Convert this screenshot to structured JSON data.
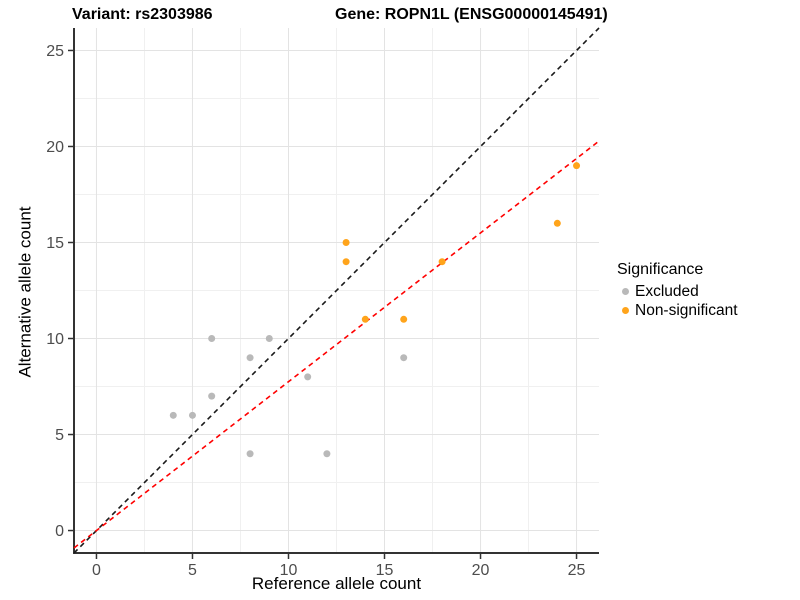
{
  "title": {
    "variant": "Variant: rs2303986",
    "gene": "Gene: ROPN1L (ENSG00000145491)"
  },
  "chart_data": {
    "type": "scatter",
    "xlabel": "Reference allele count",
    "ylabel": "Alternative allele count",
    "xlim": [
      -1.17,
      26.17
    ],
    "ylim": [
      -1.17,
      26.17
    ],
    "major_breaks": [
      0,
      5,
      10,
      15,
      20,
      25
    ],
    "minor_breaks": [
      2.5,
      7.5,
      12.5,
      17.5,
      22.5
    ],
    "grid": true,
    "series": [
      {
        "name": "Excluded",
        "color": "#b9b9b9",
        "points": [
          [
            4,
            6
          ],
          [
            5,
            6
          ],
          [
            6,
            7
          ],
          [
            6,
            10
          ],
          [
            8,
            4
          ],
          [
            8,
            9
          ],
          [
            9,
            10
          ],
          [
            11,
            8
          ],
          [
            12,
            4
          ],
          [
            16,
            9
          ]
        ]
      },
      {
        "name": "Non-significant",
        "color": "#ffa41b",
        "points": [
          [
            13,
            14
          ],
          [
            13,
            15
          ],
          [
            14,
            11
          ],
          [
            16,
            11
          ],
          [
            18,
            14
          ],
          [
            24,
            16
          ],
          [
            25,
            19
          ]
        ]
      }
    ],
    "lines": [
      {
        "name": "identity-line",
        "slope": 1,
        "intercept": 0,
        "color": "#1a1a1a",
        "dash": "5,4"
      },
      {
        "name": "fit-line",
        "slope": 0.775,
        "intercept": 0,
        "color": "#ff0000",
        "dash": "5,4"
      }
    ],
    "legend": {
      "title": "Significance",
      "position": "right",
      "items": [
        {
          "label": "Excluded",
          "color": "#b9b9b9"
        },
        {
          "label": "Non-significant",
          "color": "#ffa41b"
        }
      ]
    },
    "colors": {
      "axis_line": "#333333",
      "tick_label": "#4d4d4d",
      "grid_major": "#e3e3e3",
      "grid_minor": "#f0f0f0"
    }
  }
}
